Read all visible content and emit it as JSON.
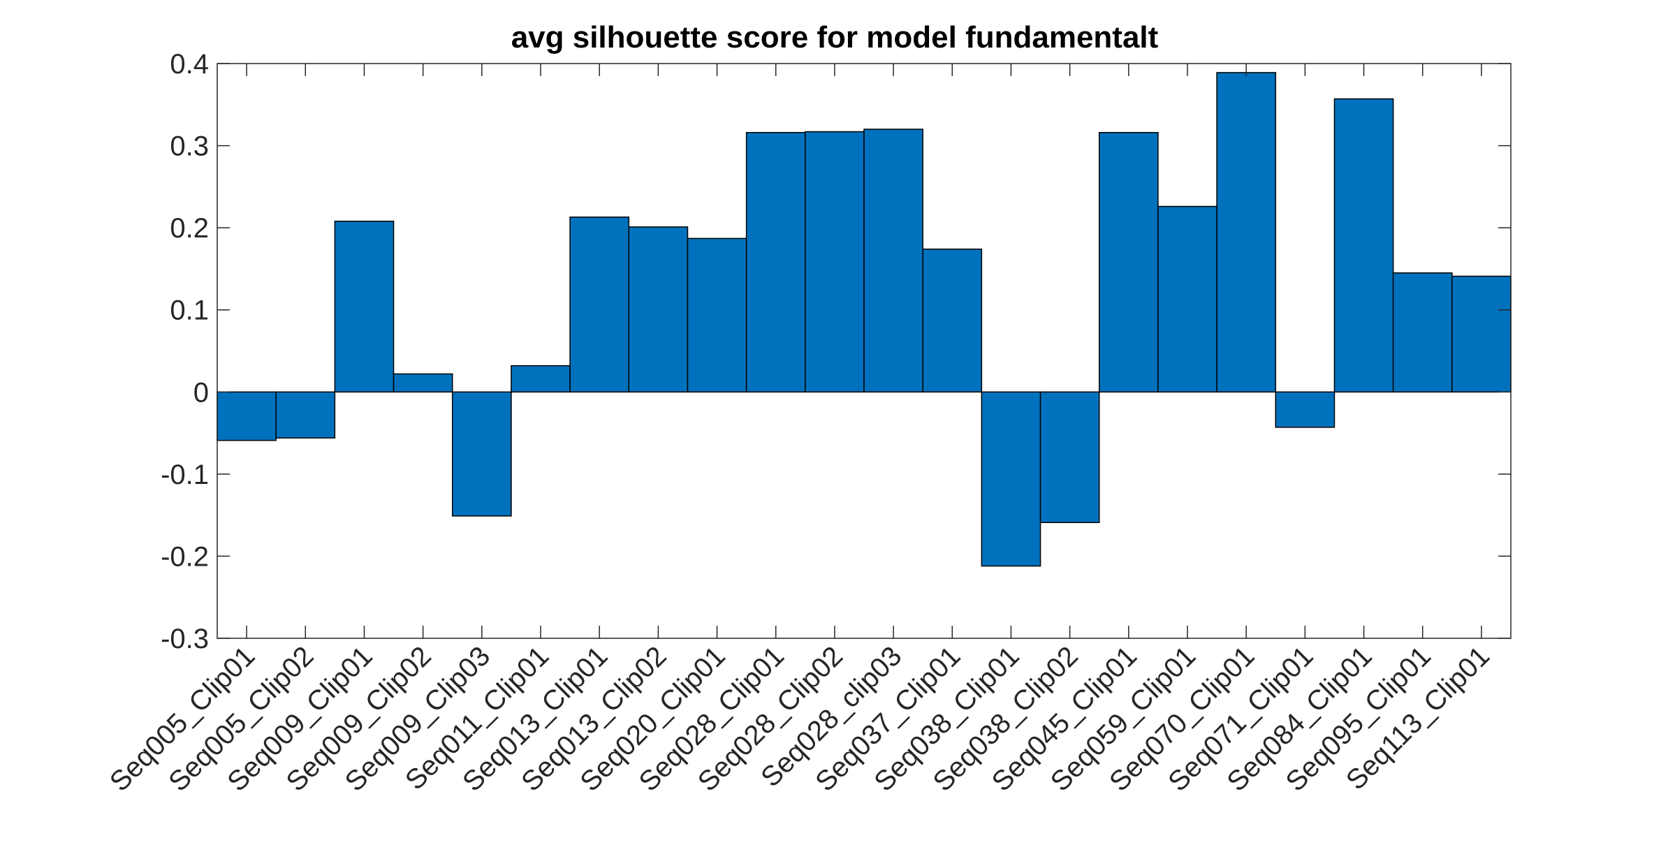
{
  "chart_data": {
    "type": "bar",
    "title": "avg silhouette score for model fundamentalt",
    "xlabel": "",
    "ylabel": "",
    "categories": [
      "Seq005_Clip01",
      "Seq005_Clip02",
      "Seq009_Clip01",
      "Seq009_Clip02",
      "Seq009_Clip03",
      "Seq011_Clip01",
      "Seq013_Clip01",
      "Seq013_Clip02",
      "Seq020_Clip01",
      "Seq028_Clip01",
      "Seq028_Clip02",
      "Seq028_clip03",
      "Seq037_Clip01",
      "Seq038_Clip01",
      "Seq038_Clip02",
      "Seq045_Clip01",
      "Seq059_Clip01",
      "Seq070_Clip01",
      "Seq071_Clip01",
      "Seq084_Clip01",
      "Seq095_Clip01",
      "Seq113_Clip01"
    ],
    "values": [
      -0.059,
      -0.056,
      0.208,
      0.022,
      -0.151,
      0.032,
      0.213,
      0.201,
      0.187,
      0.316,
      0.317,
      0.32,
      0.174,
      -0.212,
      -0.159,
      0.316,
      0.226,
      0.389,
      -0.043,
      0.357,
      0.145,
      0.141
    ],
    "ylim": [
      -0.3,
      0.4
    ],
    "yticks": [
      -0.3,
      -0.2,
      -0.1,
      0,
      0.1,
      0.2,
      0.3,
      0.4
    ],
    "ytick_labels": [
      "-0.3",
      "-0.2",
      "-0.1",
      "0",
      "0.1",
      "0.2",
      "0.3",
      "0.4"
    ],
    "grid": false,
    "bar_color": "#0072BD",
    "edge_color": "#000000",
    "axis_color": "#262626"
  }
}
